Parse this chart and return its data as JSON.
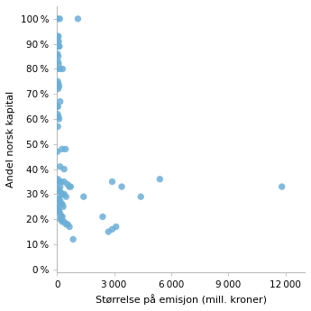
{
  "points": [
    [
      30,
      100
    ],
    [
      150,
      100
    ],
    [
      1100,
      100
    ],
    [
      30,
      93
    ],
    [
      80,
      93
    ],
    [
      40,
      91
    ],
    [
      90,
      91
    ],
    [
      30,
      89
    ],
    [
      80,
      89
    ],
    [
      130,
      89
    ],
    [
      30,
      86
    ],
    [
      70,
      85
    ],
    [
      300,
      80
    ],
    [
      50,
      83
    ],
    [
      90,
      82
    ],
    [
      30,
      80
    ],
    [
      170,
      80
    ],
    [
      40,
      75
    ],
    [
      80,
      74
    ],
    [
      110,
      73
    ],
    [
      60,
      72
    ],
    [
      170,
      67
    ],
    [
      30,
      65
    ],
    [
      50,
      65
    ],
    [
      30,
      62
    ],
    [
      80,
      61
    ],
    [
      110,
      60
    ],
    [
      50,
      57
    ],
    [
      270,
      48
    ],
    [
      450,
      48
    ],
    [
      30,
      47
    ],
    [
      160,
      41
    ],
    [
      380,
      40
    ],
    [
      50,
      36
    ],
    [
      80,
      35
    ],
    [
      130,
      35
    ],
    [
      170,
      33
    ],
    [
      220,
      35
    ],
    [
      370,
      35
    ],
    [
      550,
      34
    ],
    [
      650,
      33
    ],
    [
      720,
      33
    ],
    [
      2900,
      35
    ],
    [
      3400,
      33
    ],
    [
      5400,
      36
    ],
    [
      11800,
      33
    ],
    [
      80,
      32
    ],
    [
      120,
      31
    ],
    [
      180,
      31
    ],
    [
      230,
      30
    ],
    [
      280,
      30
    ],
    [
      380,
      30
    ],
    [
      480,
      29
    ],
    [
      1400,
      29
    ],
    [
      30,
      28
    ],
    [
      80,
      28
    ],
    [
      130,
      28
    ],
    [
      180,
      27
    ],
    [
      230,
      26
    ],
    [
      280,
      26
    ],
    [
      330,
      25
    ],
    [
      40,
      25
    ],
    [
      80,
      24
    ],
    [
      130,
      23
    ],
    [
      180,
      22
    ],
    [
      230,
      21
    ],
    [
      280,
      21
    ],
    [
      180,
      20
    ],
    [
      230,
      20
    ],
    [
      280,
      19
    ],
    [
      380,
      19
    ],
    [
      480,
      18
    ],
    [
      560,
      18
    ],
    [
      660,
      17
    ],
    [
      2400,
      21
    ],
    [
      2700,
      15
    ],
    [
      2900,
      16
    ],
    [
      3100,
      17
    ],
    [
      4400,
      29
    ],
    [
      850,
      12
    ]
  ],
  "dot_color": "#6baed6",
  "dot_size": 28,
  "xlabel": "Størrelse på emisjon (mill. kroner)",
  "ylabel": "Andel norsk kapital",
  "xlim": [
    0,
    13000
  ],
  "ylim": [
    -1,
    105
  ],
  "xticks": [
    0,
    3000,
    6000,
    9000,
    12000
  ],
  "yticks": [
    0,
    10,
    20,
    30,
    40,
    50,
    60,
    70,
    80,
    90,
    100
  ],
  "xlabel_fontsize": 8,
  "ylabel_fontsize": 8,
  "tick_fontsize": 7.5,
  "background_color": "#ffffff",
  "figsize": [
    3.45,
    3.45
  ],
  "dpi": 100
}
